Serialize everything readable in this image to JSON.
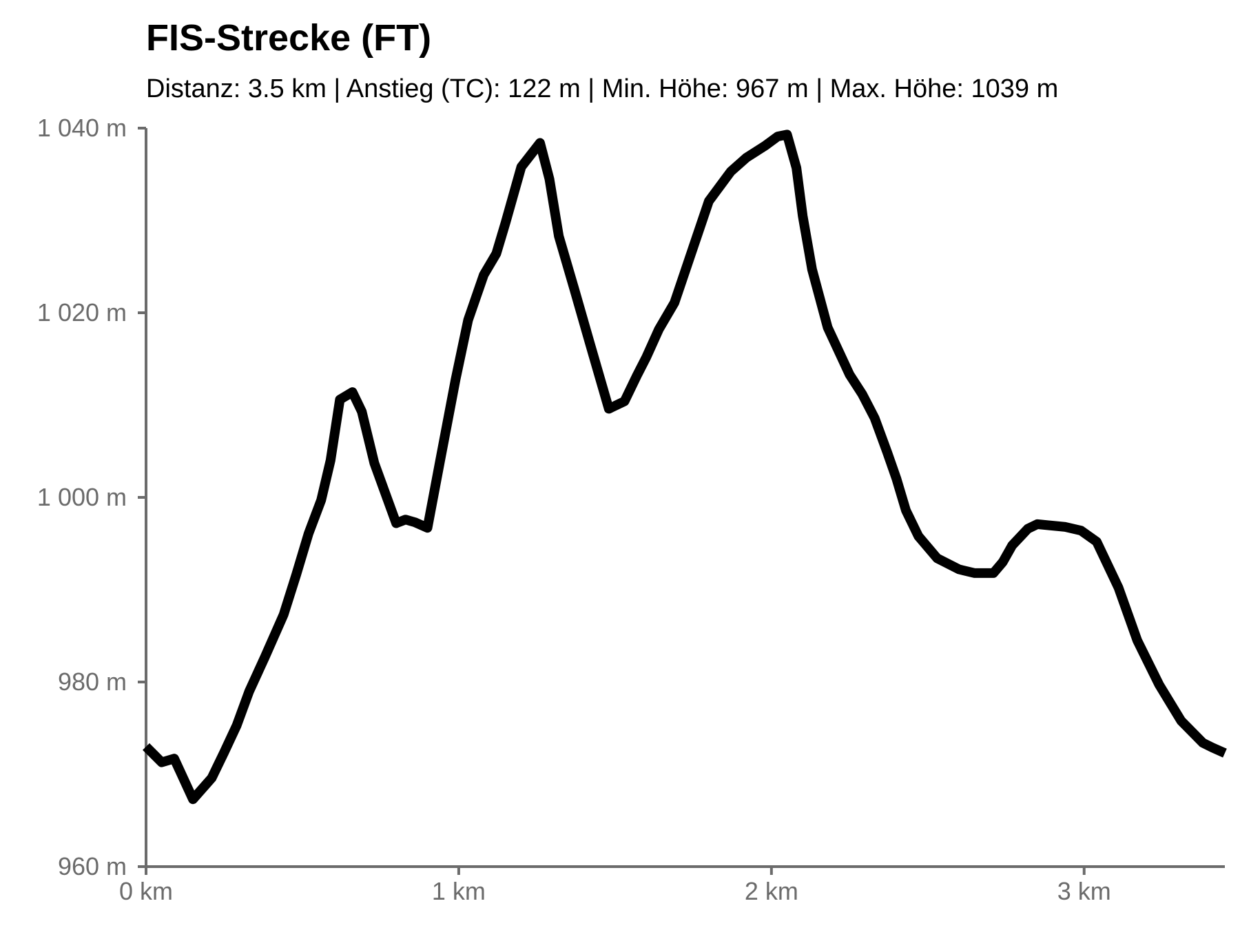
{
  "chart_data": {
    "type": "line",
    "title": "FIS-Strecke (FT)",
    "subtitle": "Distanz: 3.5 km | Anstieg (TC): 122 m | Min. Höhe: 967 m | Max. Höhe: 1039 m",
    "xlabel": "",
    "ylabel": "",
    "xlim": [
      0,
      3.45
    ],
    "ylim": [
      960,
      1040
    ],
    "x_ticks": [
      0,
      1,
      2,
      3
    ],
    "x_tick_labels": [
      "0 km",
      "1 km",
      "2 km",
      "3 km"
    ],
    "y_ticks": [
      960,
      980,
      1000,
      1020,
      1040
    ],
    "y_tick_labels": [
      "960 m",
      "980 m",
      "1 000 m",
      "1 020 m",
      "1 040 m"
    ],
    "grid": false,
    "line_color": "#000000",
    "axis_color": "#6b6b6b",
    "series": [
      {
        "x": [
          0,
          0.05,
          0.09,
          0.15,
          0.21,
          0.25,
          0.29,
          0.33,
          0.38,
          0.44,
          0.48,
          0.52,
          0.56,
          0.59,
          0.62,
          0.66,
          0.69,
          0.73,
          0.8,
          0.83,
          0.86,
          0.9,
          0.94,
          0.99,
          1.03,
          1.08,
          1.12,
          1.15,
          1.2,
          1.26,
          1.29,
          1.32,
          1.37,
          1.42,
          1.48,
          1.53,
          1.57,
          1.6,
          1.64,
          1.69,
          1.75,
          1.8,
          1.87,
          1.92,
          1.98,
          2.02,
          2.05,
          2.08,
          2.1,
          2.13,
          2.18,
          2.25,
          2.29,
          2.33,
          2.37,
          2.4,
          2.43,
          2.47,
          2.53,
          2.6,
          2.65,
          2.71,
          2.74,
          2.77,
          2.82,
          2.85,
          2.94,
          2.99,
          3.04,
          3.11,
          3.17,
          3.24,
          3.31,
          3.38,
          3.41,
          3.45
        ],
        "y": [
          973,
          971.3,
          971.7,
          967.3,
          969.6,
          972.4,
          975.3,
          979,
          982.7,
          987.3,
          991.6,
          996.1,
          999.7,
          1004,
          1010.6,
          1011.4,
          1009.3,
          1003.7,
          997.2,
          997.6,
          997.3,
          996.7,
          1003.9,
          1012.8,
          1019.2,
          1024.1,
          1026.4,
          1029.8,
          1035.8,
          1038.4,
          1034.5,
          1028.3,
          1022.5,
          1016.6,
          1009.6,
          1010.4,
          1013.2,
          1015.2,
          1018.2,
          1021.1,
          1027.1,
          1032.1,
          1035.3,
          1036.8,
          1038.1,
          1039.1,
          1039.3,
          1035.7,
          1030.5,
          1024.7,
          1018.4,
          1013.3,
          1011.2,
          1008.6,
          1004.9,
          1002,
          998.6,
          995.8,
          993.4,
          992.2,
          991.8,
          991.8,
          993,
          994.8,
          996.6,
          997.1,
          996.8,
          996.4,
          995.2,
          990.2,
          984.5,
          979.7,
          975.8,
          973.4,
          972.9,
          972.3
        ]
      }
    ]
  }
}
